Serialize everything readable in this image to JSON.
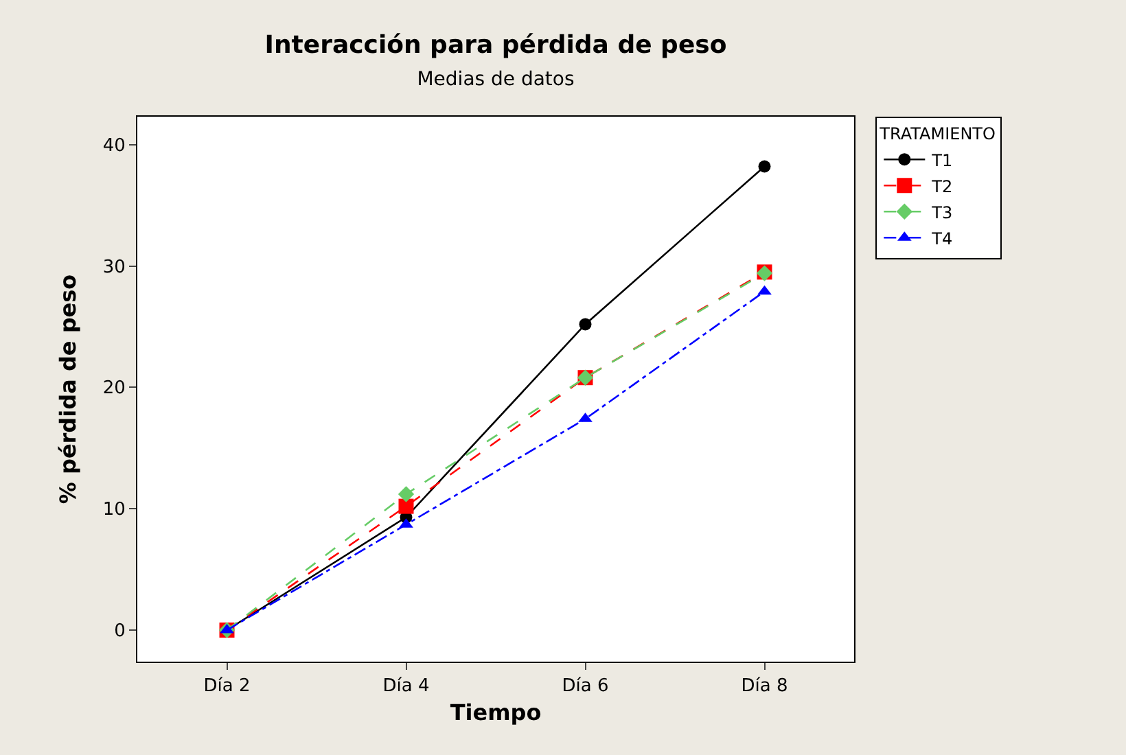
{
  "chart_data": {
    "type": "line",
    "title": "Interacción para pérdida de peso",
    "subtitle": "Medias de datos",
    "xlabel": "Tiempo",
    "ylabel": "% pérdida de peso",
    "legend_title": "TRATAMIENTO",
    "legend": "top right",
    "categories": [
      "Día 2",
      "Día 4",
      "Día 6",
      "Día 8"
    ],
    "ylim": [
      -2.6,
      42.3
    ],
    "yticks": [
      0,
      10,
      20,
      30,
      40
    ],
    "series": [
      {
        "name": "T1",
        "color": "#000000",
        "marker": "circle",
        "line_style": "solid",
        "values": [
          0,
          9.3,
          25.2,
          38.2
        ]
      },
      {
        "name": "T2",
        "color": "#ff0000",
        "marker": "square",
        "line_style": "dashed",
        "values": [
          0,
          10.2,
          20.8,
          29.5
        ]
      },
      {
        "name": "T3",
        "color": "#66cc66",
        "marker": "diamond",
        "line_style": "dashed",
        "values": [
          0,
          11.2,
          20.8,
          29.4
        ]
      },
      {
        "name": "T4",
        "color": "#0000ff",
        "marker": "triangle",
        "line_style": "dashdot",
        "values": [
          0,
          8.7,
          17.4,
          27.9
        ]
      }
    ]
  }
}
